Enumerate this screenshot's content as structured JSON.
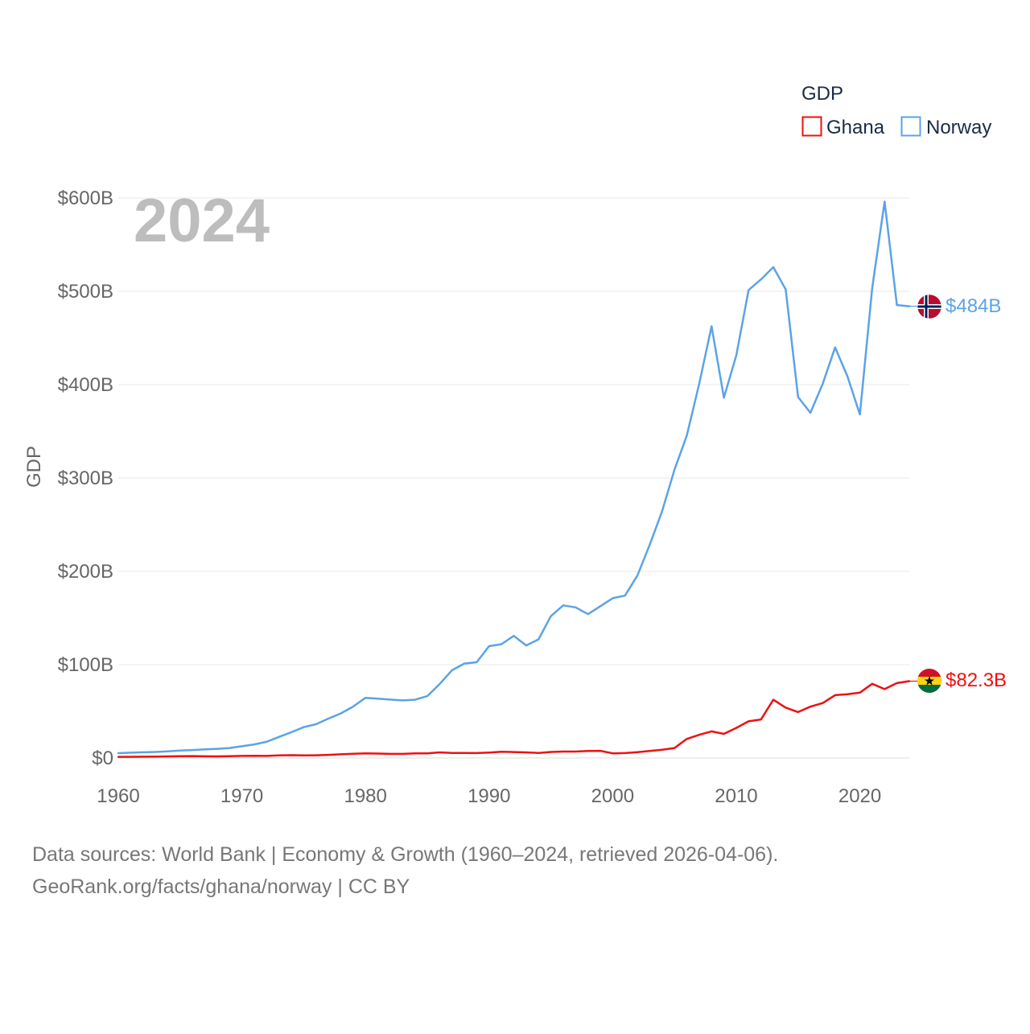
{
  "chart_data": {
    "type": "line",
    "ylabel": "GDP",
    "xlabel": "",
    "year_label": "2024",
    "xlim": [
      1960,
      2024
    ],
    "ylim": [
      0,
      600
    ],
    "x_ticks": [
      1960,
      1970,
      1980,
      1990,
      2000,
      2010,
      2020
    ],
    "y_ticks": [
      {
        "value": 0,
        "label": "$0"
      },
      {
        "value": 100,
        "label": "$100B"
      },
      {
        "value": 200,
        "label": "$200B"
      },
      {
        "value": 300,
        "label": "$300B"
      },
      {
        "value": 400,
        "label": "$400B"
      },
      {
        "value": 500,
        "label": "$500B"
      },
      {
        "value": 600,
        "label": "$600B"
      }
    ],
    "unit": "billion USD",
    "legend": {
      "title": "GDP",
      "position": "top-right"
    },
    "grid": true,
    "x": [
      1960,
      1961,
      1962,
      1963,
      1964,
      1965,
      1966,
      1967,
      1968,
      1969,
      1970,
      1971,
      1972,
      1973,
      1974,
      1975,
      1976,
      1977,
      1978,
      1979,
      1980,
      1981,
      1982,
      1983,
      1984,
      1985,
      1986,
      1987,
      1988,
      1989,
      1990,
      1991,
      1992,
      1993,
      1994,
      1995,
      1996,
      1997,
      1998,
      1999,
      2000,
      2001,
      2002,
      2003,
      2004,
      2005,
      2006,
      2007,
      2008,
      2009,
      2010,
      2011,
      2012,
      2013,
      2014,
      2015,
      2016,
      2017,
      2018,
      2019,
      2020,
      2021,
      2022,
      2023,
      2024
    ],
    "series": [
      {
        "name": "Ghana",
        "color": "#ee1111",
        "end_label": "$82.3B",
        "flag": "ghana-flag",
        "values": [
          1.2,
          1.3,
          1.4,
          1.5,
          1.7,
          2.0,
          2.1,
          1.8,
          1.7,
          1.9,
          2.2,
          2.4,
          2.2,
          2.8,
          3.0,
          2.8,
          2.9,
          3.4,
          4.0,
          4.5,
          4.9,
          4.7,
          4.4,
          4.4,
          4.9,
          4.9,
          6.0,
          5.4,
          5.4,
          5.3,
          5.9,
          6.6,
          6.4,
          6.0,
          5.4,
          6.5,
          6.9,
          6.9,
          7.5,
          7.7,
          5.0,
          5.3,
          6.2,
          7.6,
          8.9,
          10.7,
          20.4,
          24.8,
          28.5,
          25.9,
          32.2,
          39.3,
          41.3,
          62.4,
          54.0,
          49.2,
          55.0,
          58.9,
          67.3,
          68.4,
          70.0,
          79.5,
          73.8,
          80.3,
          82.3
        ]
      },
      {
        "name": "Norway",
        "color": "#5ba3e6",
        "end_label": "$484B",
        "flag": "norway-flag",
        "values": [
          5.2,
          5.7,
          6.1,
          6.5,
          7.1,
          7.9,
          8.5,
          9.2,
          9.8,
          10.7,
          12.6,
          14.6,
          17.3,
          22.6,
          27.6,
          33.0,
          36.2,
          42.2,
          47.8,
          55.1,
          64.5,
          63.6,
          62.6,
          61.7,
          62.4,
          66.3,
          79.2,
          94.0,
          101.2,
          102.6,
          119.8,
          121.9,
          130.9,
          120.6,
          127.1,
          152.0,
          163.5,
          161.4,
          154.1,
          162.6,
          171.2,
          174.0,
          195.4,
          228.6,
          264.4,
          308.9,
          345.4,
          400.9,
          462.5,
          386.0,
          431.3,
          501.4,
          512.8,
          525.9,
          502.0,
          386.7,
          369.8,
          401.1,
          439.8,
          408.7,
          368.0,
          503.4,
          596.1,
          485.3,
          484.0
        ]
      }
    ]
  },
  "footer": {
    "line1": "Data sources: World Bank | Economy & Growth (1960–2024, retrieved 2026-04-06).",
    "line2": "GeoRank.org/facts/ghana/norway | CC BY"
  }
}
